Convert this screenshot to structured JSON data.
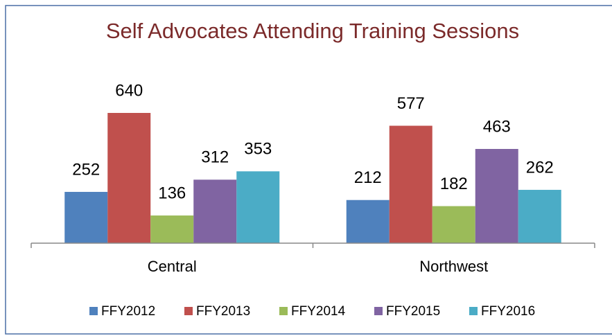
{
  "chart_data": {
    "type": "bar",
    "title": "Self Advocates Attending Training Sessions",
    "categories": [
      "Central",
      "Northwest"
    ],
    "series": [
      {
        "name": "FFY2012",
        "color": "#4f81bd",
        "values": [
          252,
          212
        ]
      },
      {
        "name": "FFY2013",
        "color": "#c0504d",
        "values": [
          640,
          577
        ]
      },
      {
        "name": "FFY2014",
        "color": "#9bbb59",
        "values": [
          136,
          182
        ]
      },
      {
        "name": "FFY2015",
        "color": "#8064a2",
        "values": [
          312,
          463
        ]
      },
      {
        "name": "FFY2016",
        "color": "#4bacc6",
        "values": [
          353,
          262
        ]
      }
    ],
    "legend": "bottom"
  }
}
